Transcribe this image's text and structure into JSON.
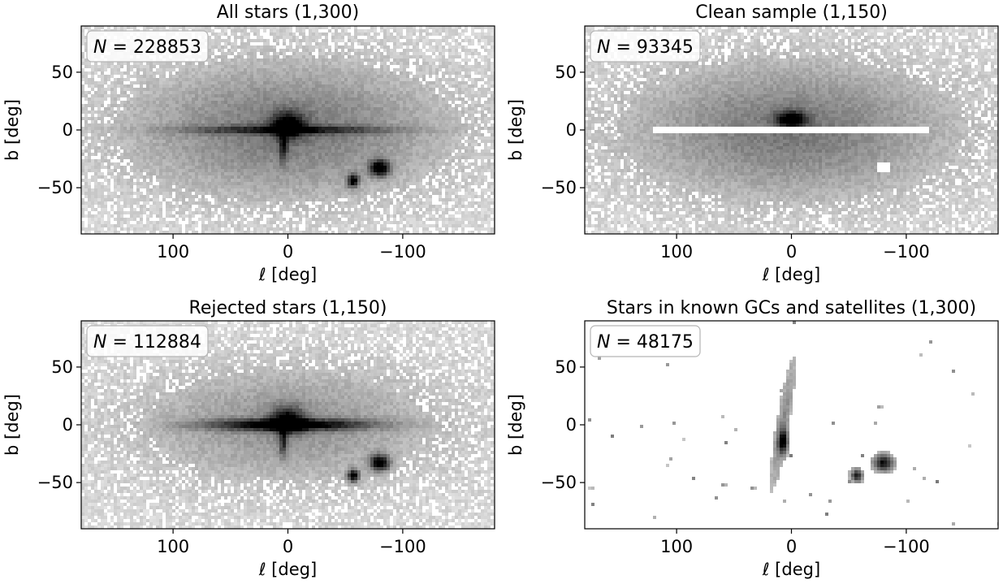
{
  "figure_description_colors": {
    "density": "#000000",
    "frame": "#000000",
    "nbox_edge": "#b5b5b5"
  },
  "chart_data": [
    {
      "type": "heatmap",
      "title": "All stars (1,300)",
      "xlabel": "ℓ [deg]",
      "ylabel": "b [deg]",
      "xlim": [
        180,
        -180
      ],
      "ylim": [
        -90,
        90
      ],
      "xticks": [
        100,
        0,
        -100
      ],
      "yticks": [
        50,
        0,
        -50
      ],
      "xtick_labels": [
        "100",
        "0",
        "−100"
      ],
      "ytick_labels": [
        "50",
        "0",
        "−50"
      ],
      "n_label": "N",
      "n_value": "228853",
      "features": [
        "halo",
        "disk",
        "bulge",
        "lmc",
        "smc",
        "sgr",
        "noise"
      ]
    },
    {
      "type": "heatmap",
      "title": "Clean sample (1,150)",
      "xlabel": "ℓ [deg]",
      "ylabel": "b [deg]",
      "xlim": [
        180,
        -180
      ],
      "ylim": [
        -90,
        90
      ],
      "xticks": [
        100,
        0,
        -100
      ],
      "yticks": [
        50,
        0,
        -50
      ],
      "xtick_labels": [
        "100",
        "0",
        "−100"
      ],
      "ytick_labels": [
        "50",
        "0",
        "−50"
      ],
      "n_label": "N",
      "n_value": "93345",
      "features": [
        "halo",
        "bulge-upper",
        "noise",
        "disk-gap",
        "lmc-hole"
      ]
    },
    {
      "type": "heatmap",
      "title": "Rejected stars (1,150)",
      "xlabel": "ℓ [deg]",
      "ylabel": "b [deg]",
      "xlim": [
        180,
        -180
      ],
      "ylim": [
        -90,
        90
      ],
      "xticks": [
        100,
        0,
        -100
      ],
      "yticks": [
        50,
        0,
        -50
      ],
      "xtick_labels": [
        "100",
        "0",
        "−100"
      ],
      "ytick_labels": [
        "50",
        "0",
        "−50"
      ],
      "n_label": "N",
      "n_value": "112884",
      "features": [
        "halo-faint",
        "disk-strong",
        "bulge",
        "lmc",
        "smc",
        "sgr",
        "noise"
      ]
    },
    {
      "type": "heatmap",
      "title": "Stars in known GCs and satellites (1,300)",
      "xlabel": "ℓ [deg]",
      "ylabel": "b [deg]",
      "xlim": [
        180,
        -180
      ],
      "ylim": [
        -90,
        90
      ],
      "xticks": [
        100,
        0,
        -100
      ],
      "yticks": [
        50,
        0,
        -50
      ],
      "xtick_labels": [
        "100",
        "0",
        "−100"
      ],
      "ytick_labels": [
        "50",
        "0",
        "−50"
      ],
      "n_label": "N",
      "n_value": "48175",
      "features": [
        "sgr-stream",
        "lmc",
        "smc",
        "clusters"
      ]
    }
  ]
}
